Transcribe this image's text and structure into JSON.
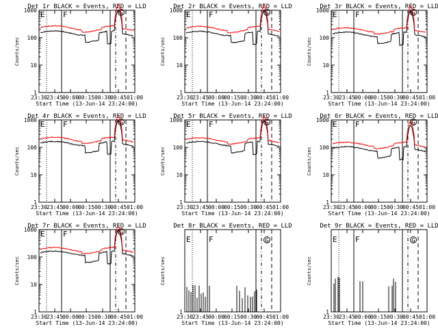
{
  "figure": {
    "common": {
      "xlabel": "Start Time (13-Jun-14 23:24:00)",
      "ylabel": "Counts/sec",
      "x_ticks": [
        "23:30",
        "23:45",
        "00:00",
        "00:15",
        "00:30",
        "00:45",
        "01:00"
      ],
      "y_ticks_log": [
        "1",
        "10",
        "100",
        "1000"
      ],
      "y_ticks_small": [
        "1"
      ],
      "marker_labels": [
        "E",
        "F"
      ],
      "peak_label": "G"
    }
  },
  "chart_data": [
    {
      "type": "line",
      "title": "Det 1r BLACK = Events, RED = LLD",
      "xlabel": "Start Time (13-Jun-14 23:24:00)",
      "ylabel": "Counts/sec",
      "yscale": "log",
      "ylim": [
        1,
        1000
      ],
      "series": [
        {
          "name": "Events",
          "color": "#000000",
          "base": 150
        },
        {
          "name": "LLD",
          "color": "#ff0000",
          "base": 230
        }
      ]
    },
    {
      "type": "line",
      "title": "Det 2r BLACK = Events, RED = LLD",
      "xlabel": "Start Time (13-Jun-14 23:24:00)",
      "ylabel": "Counts/sec",
      "yscale": "log",
      "ylim": [
        1,
        1000
      ],
      "series": [
        {
          "name": "Events",
          "color": "#000000",
          "base": 145
        },
        {
          "name": "LLD",
          "color": "#ff0000",
          "base": 220
        }
      ]
    },
    {
      "type": "line",
      "title": "Det 3r BLACK = Events, RED = LLD",
      "xlabel": "Start Time (13-Jun-14 23:24:00)",
      "ylabel": "Counts/sec",
      "yscale": "log",
      "ylim": [
        1,
        1000
      ],
      "series": [
        {
          "name": "Events",
          "color": "#000000",
          "base": 135
        },
        {
          "name": "LLD",
          "color": "#ff0000",
          "base": 195
        }
      ]
    },
    {
      "type": "line",
      "title": "Det 4r BLACK = Events, RED = LLD",
      "xlabel": "Start Time (13-Jun-14 23:24:00)",
      "ylabel": "Counts/sec",
      "yscale": "log",
      "ylim": [
        1,
        1000
      ],
      "series": [
        {
          "name": "Events",
          "color": "#000000",
          "base": 140
        },
        {
          "name": "LLD",
          "color": "#ff0000",
          "base": 200
        }
      ]
    },
    {
      "type": "line",
      "title": "Det 5r BLACK = Events, RED = LLD",
      "xlabel": "Start Time (13-Jun-14 23:24:00)",
      "ylabel": "Counts/sec",
      "yscale": "log",
      "ylim": [
        1,
        1000
      ],
      "series": [
        {
          "name": "Events",
          "color": "#000000",
          "base": 140
        },
        {
          "name": "LLD",
          "color": "#ff0000",
          "base": 190
        }
      ]
    },
    {
      "type": "line",
      "title": "Det 6r BLACK = Events, RED = LLD",
      "xlabel": "Start Time (13-Jun-14 23:24:00)",
      "ylabel": "Counts/sec",
      "yscale": "log",
      "ylim": [
        1,
        1000
      ],
      "series": [
        {
          "name": "Events",
          "color": "#000000",
          "base": 90
        },
        {
          "name": "LLD",
          "color": "#ff0000",
          "base": 130
        }
      ]
    },
    {
      "type": "line",
      "title": "Det 7r BLACK = Events, RED = LLD",
      "xlabel": "Start Time (13-Jun-14 23:24:00)",
      "ylabel": "Counts/sec",
      "yscale": "log",
      "ylim": [
        1,
        1000
      ],
      "series": [
        {
          "name": "Events",
          "color": "#000000",
          "base": 140
        },
        {
          "name": "LLD",
          "color": "#ff0000",
          "base": 190
        }
      ]
    },
    {
      "type": "line",
      "title": "Det 8r BLACK = Events, RED = LLD",
      "xlabel": "Start Time (13-Jun-14 23:24:00)",
      "ylabel": "Counts/sec",
      "yscale": "log",
      "ylim": [
        1,
        5
      ],
      "series": [
        {
          "name": "Events",
          "color": "#000000",
          "base": 1
        }
      ]
    },
    {
      "type": "line",
      "title": "Det 9r BLACK = Events, RED = LLD",
      "xlabel": "Start Time (13-Jun-14 23:24:00)",
      "ylabel": "Counts/sec",
      "yscale": "log",
      "ylim": [
        1,
        5
      ],
      "series": [
        {
          "name": "Events",
          "color": "#000000",
          "base": 1
        }
      ]
    }
  ]
}
